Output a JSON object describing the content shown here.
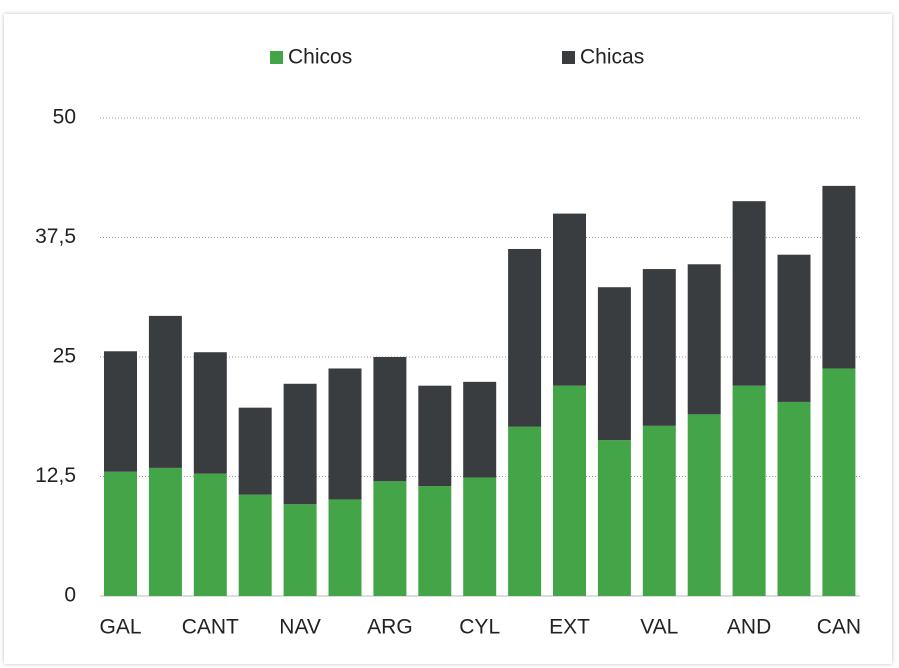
{
  "chart_data": {
    "type": "stacked_bar",
    "categories": [
      "GAL",
      null,
      "CANT",
      null,
      "NAV",
      null,
      "ARG",
      null,
      "CYL",
      null,
      "EXT",
      null,
      "VAL",
      null,
      "AND",
      null,
      "CAN"
    ],
    "series": [
      {
        "name": "Chicos",
        "color": "#44a548",
        "values": [
          13.0,
          13.4,
          12.8,
          10.6,
          9.6,
          10.1,
          12.0,
          11.5,
          12.4,
          17.7,
          22.0,
          16.3,
          17.8,
          19.0,
          22.0,
          20.3,
          23.8
        ]
      },
      {
        "name": "Chicas",
        "color": "#3a3d40",
        "values": [
          12.6,
          15.9,
          12.7,
          9.1,
          12.6,
          13.7,
          13.0,
          10.5,
          10.0,
          18.6,
          18.0,
          16.0,
          16.4,
          15.7,
          19.3,
          15.4,
          19.1
        ]
      }
    ],
    "ylim": [
      0,
      50
    ],
    "yticks": [
      0,
      {
        "value": 12.5,
        "label": "12,5"
      },
      25,
      {
        "value": 37.5,
        "label": "37,5"
      },
      50
    ],
    "grid": true,
    "legend": "top"
  }
}
